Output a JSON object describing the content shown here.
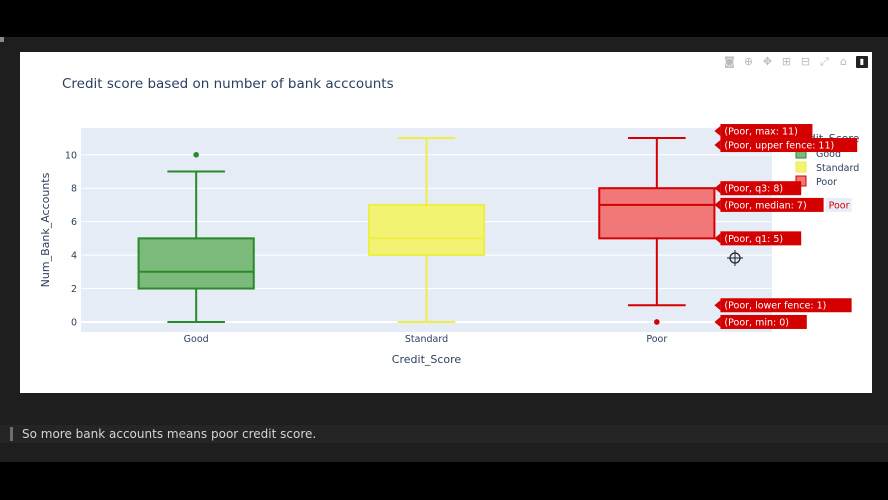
{
  "page": {
    "markdown_text": "So more bank accounts means poor credit score."
  },
  "modebar": {
    "icons": [
      "camera-icon",
      "zoom-icon",
      "pan-icon",
      "zoom-in-icon",
      "zoom-out-icon",
      "autoscale-icon",
      "home-icon",
      "plotly-logo-icon"
    ],
    "glyphs": [
      "◙",
      "⊕",
      "✥",
      "⊞",
      "⊟",
      "⤢",
      "⌂",
      "▮"
    ]
  },
  "chart_data": {
    "type": "box",
    "title": "Credit score based on number of bank acccounts",
    "xlabel": "Credit_Score",
    "ylabel": "Num_Bank_Accounts",
    "categories": [
      "Good",
      "Standard",
      "Poor"
    ],
    "ylim": [
      -0.6,
      11.6
    ],
    "yticks": [
      0,
      2,
      4,
      6,
      8,
      10
    ],
    "grid": true,
    "legend": {
      "title": "Credit_Score",
      "placement": "right",
      "entries": [
        "Good",
        "Standard",
        "Poor"
      ]
    },
    "series": [
      {
        "name": "Good",
        "color": "#2a8a2a",
        "fill": "#7cba7c",
        "min": 0,
        "lower_fence": 0,
        "q1": 2,
        "median": 3,
        "q3": 5,
        "upper_fence": 9,
        "max": 10,
        "outliers": [
          10
        ]
      },
      {
        "name": "Standard",
        "color": "#eeee44",
        "fill": "#f3f373",
        "min": 0,
        "lower_fence": 0,
        "q1": 4,
        "median": 5,
        "q3": 7,
        "upper_fence": 11,
        "max": 11,
        "outliers": []
      },
      {
        "name": "Poor",
        "color": "#d40000",
        "fill": "#f07878",
        "min": 0,
        "lower_fence": 1,
        "q1": 5,
        "median": 7,
        "q3": 8,
        "upper_fence": 11,
        "max": 11,
        "outliers": [
          0
        ]
      }
    ],
    "hover": {
      "trace": "Poor",
      "labels": [
        {
          "text": "(Poor, max: 11)",
          "value": 11
        },
        {
          "text": "(Poor, upper fence: 11)",
          "value": 11
        },
        {
          "text": "(Poor, q3: 8)",
          "value": 8
        },
        {
          "text": "(Poor, median: 7)",
          "value": 7
        },
        {
          "text": "(Poor, q1: 5)",
          "value": 5
        },
        {
          "text": "(Poor, lower fence: 1)",
          "value": 1
        },
        {
          "text": "(Poor, min: 0)",
          "value": 0
        }
      ],
      "trace_label": "Poor"
    }
  }
}
